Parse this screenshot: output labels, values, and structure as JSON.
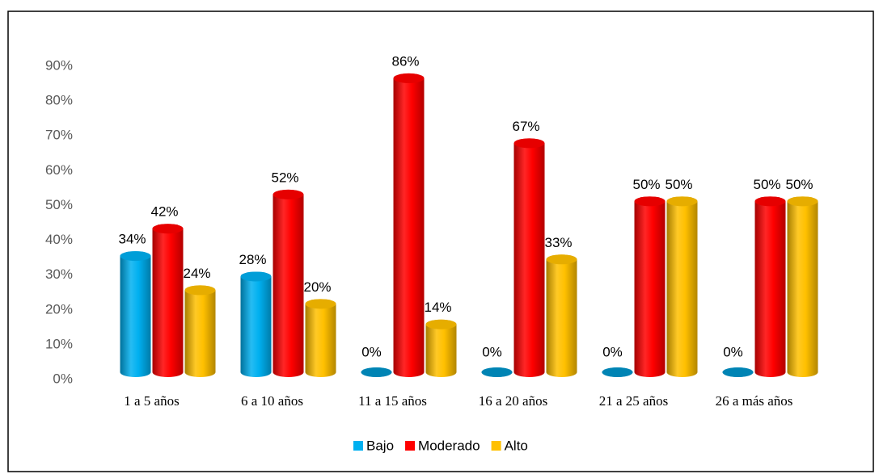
{
  "chart_data": {
    "type": "bar3d",
    "categories": [
      "1 a 5 años",
      "6 a 10 años",
      "11 a 15 años",
      "16 a 20 años",
      "21 a 25 años",
      "26 a más años"
    ],
    "series": [
      {
        "name": "Bajo",
        "color": "#00B0F0",
        "values": [
          34,
          28,
          0,
          0,
          0,
          0
        ],
        "value_labels": [
          "34%",
          "28%",
          "0%",
          "0%",
          "0%",
          "0%"
        ]
      },
      {
        "name": "Moderado",
        "color": "#FF0000",
        "values": [
          42,
          52,
          86,
          67,
          50,
          50
        ],
        "value_labels": [
          "42%",
          "52%",
          "86%",
          "67%",
          "50%",
          "50%"
        ]
      },
      {
        "name": "Alto",
        "color": "#FFC000",
        "values": [
          24,
          20,
          14,
          33,
          50,
          50
        ],
        "value_labels": [
          "24%",
          "20%",
          "14%",
          "33%",
          "50%",
          "50%"
        ]
      }
    ],
    "ylim": [
      0,
      90
    ],
    "yticks": [
      {
        "value": 0,
        "label": "0%"
      },
      {
        "value": 10,
        "label": "10%"
      },
      {
        "value": 20,
        "label": "20%"
      },
      {
        "value": 30,
        "label": "30%"
      },
      {
        "value": 40,
        "label": "40%"
      },
      {
        "value": 50,
        "label": "50%"
      },
      {
        "value": 60,
        "label": "60%"
      },
      {
        "value": 70,
        "label": "70%"
      },
      {
        "value": 80,
        "label": "80%"
      },
      {
        "value": 90,
        "label": "90%"
      }
    ],
    "grid": false,
    "legend": "bottom"
  }
}
